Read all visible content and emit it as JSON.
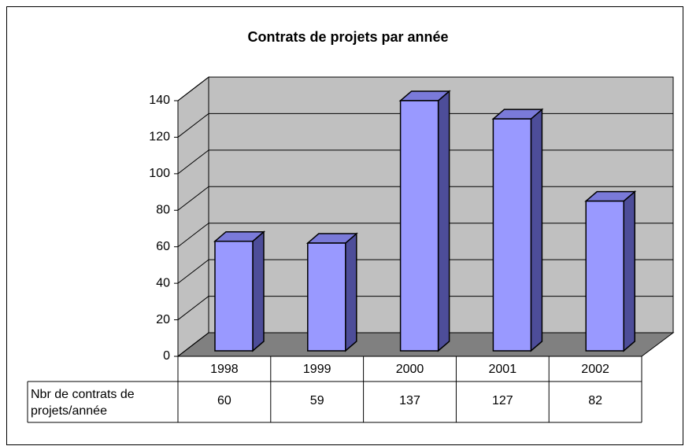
{
  "chart_data": {
    "type": "bar3d",
    "title": "Contrats de projets par année",
    "categories": [
      "1998",
      "1999",
      "2000",
      "2001",
      "2002"
    ],
    "series": [
      {
        "name": "Nbr de contrats de projets/année",
        "color": "#9999ff",
        "values": [
          60,
          59,
          137,
          127,
          82
        ]
      }
    ],
    "ylim": [
      0,
      140
    ],
    "yticks": [
      0,
      20,
      40,
      60,
      80,
      100,
      120,
      140
    ],
    "grid": true
  }
}
